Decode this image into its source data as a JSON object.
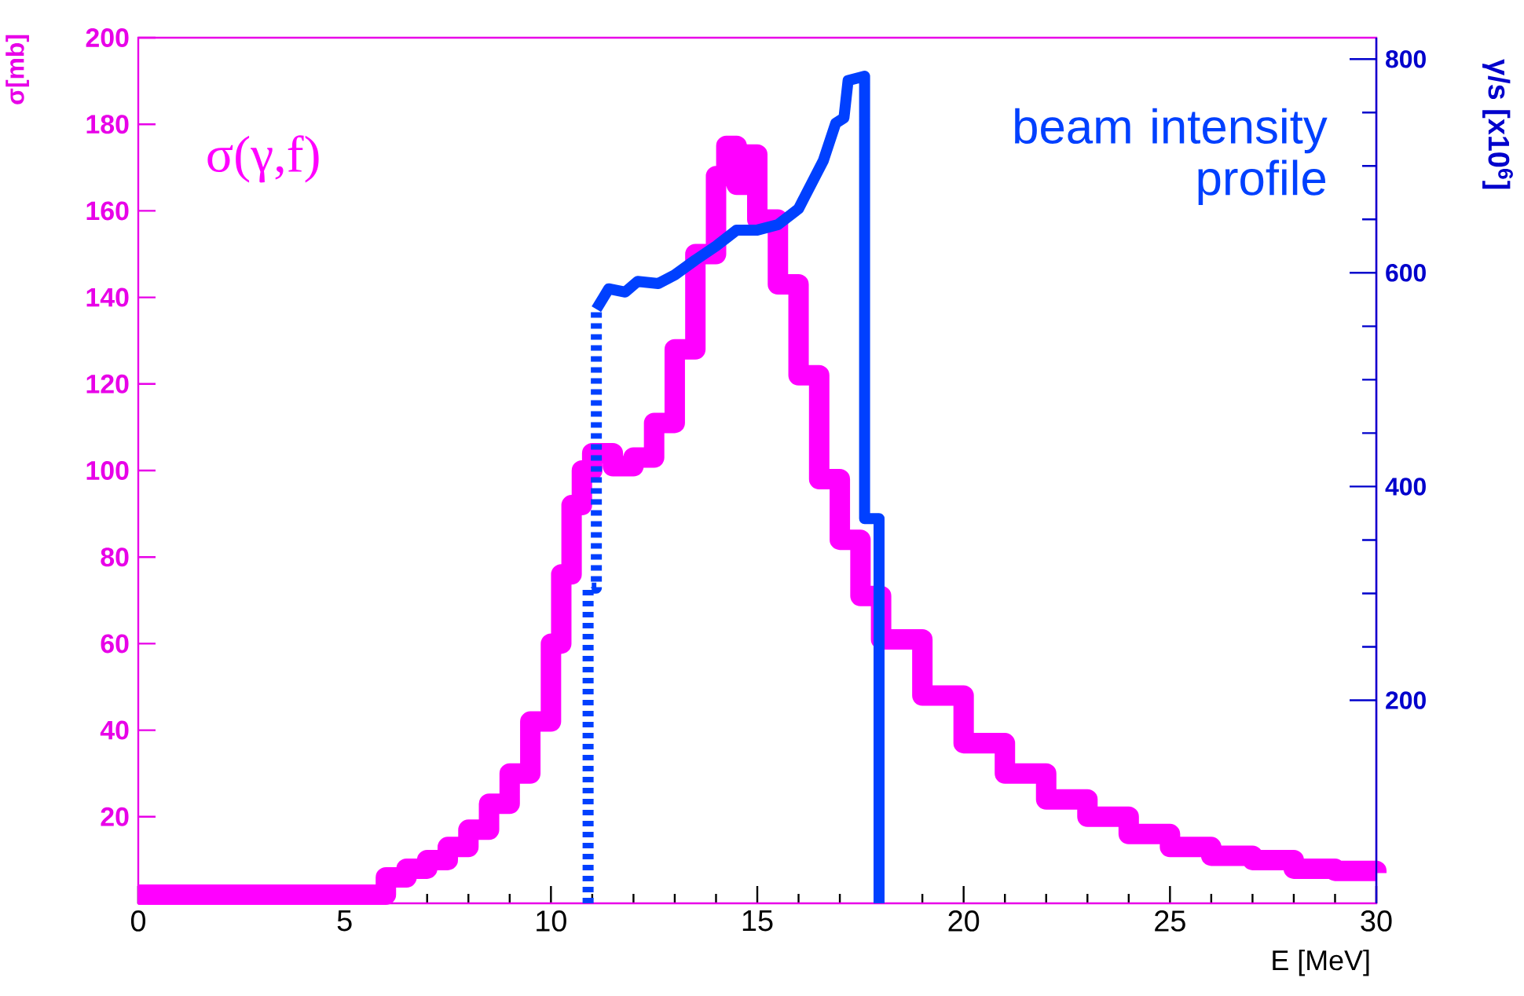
{
  "chart_data": {
    "type": "line",
    "xlabel": "E [MeV]",
    "ylabel": "σ[mb]",
    "y2label": "γ/s [x10$^{6}$]",
    "xlim": [
      0,
      30
    ],
    "xticks": [
      0,
      5,
      10,
      15,
      20,
      25,
      30
    ],
    "ylim": [
      0,
      200
    ],
    "yticks": [
      20,
      40,
      60,
      80,
      100,
      120,
      140,
      160,
      180,
      200
    ],
    "y2lim": [
      10,
      820
    ],
    "y2ticks": [
      200,
      400,
      600,
      800
    ],
    "grid": false,
    "series": [
      {
        "name": "σ(γ,f)",
        "type": "step",
        "color": "#ff00ff",
        "axis": "y",
        "line_style": "solid",
        "x": [
          0,
          5.5,
          6,
          6.5,
          7,
          7.5,
          8,
          8.5,
          9,
          9.5,
          10,
          10.25,
          10.5,
          10.75,
          11,
          11.5,
          12,
          12.5,
          13,
          13.5,
          14,
          14.25,
          14.5,
          14.75,
          15,
          15.5,
          16,
          16.5,
          17,
          17.5,
          18,
          19,
          20,
          21,
          22,
          23,
          24,
          25,
          26,
          27,
          28,
          29,
          30
        ],
        "values": [
          2,
          2,
          6,
          8,
          10,
          13,
          17,
          23,
          30,
          42,
          60,
          76,
          92,
          100,
          104,
          101,
          103,
          111,
          128,
          150,
          168,
          175,
          166,
          173,
          158,
          143,
          122,
          98,
          84,
          71,
          61,
          48,
          37,
          30,
          24,
          20,
          16,
          13,
          11,
          10,
          8,
          7.5,
          7
        ]
      },
      {
        "type": "line",
        "color": "#0040ff",
        "axis": "y2",
        "line_style": "dotted",
        "x": [
          10.9,
          10.9,
          11.1,
          11.1
        ],
        "values": [
          10,
          305,
          305,
          566
        ]
      },
      {
        "name": "beam intensity profile",
        "type": "line",
        "color": "#0040ff",
        "axis": "y2",
        "line_style": "solid",
        "x": [
          11.1,
          11.4,
          11.8,
          12.1,
          12.6,
          13,
          13.5,
          14,
          14.5,
          15,
          15.5,
          16,
          16.4,
          16.6,
          16.9,
          17.1,
          17.2,
          17.6,
          17.6,
          17.95,
          17.95
        ],
        "values": [
          566,
          585,
          582,
          592,
          590,
          598,
          612,
          625,
          640,
          640,
          645,
          660,
          690,
          705,
          740,
          745,
          780,
          784,
          370,
          370,
          10
        ]
      }
    ]
  }
}
